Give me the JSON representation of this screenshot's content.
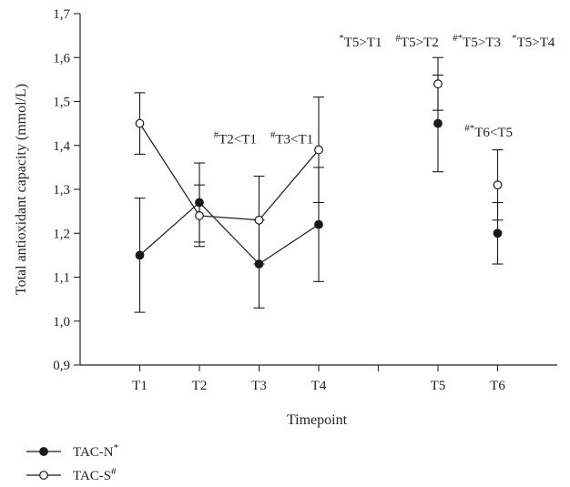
{
  "chart_data": {
    "type": "line",
    "xlabel": "Timepoint",
    "ylabel": "Total antioxidant capacity (mmol/L)",
    "x": [
      "T1",
      "T2",
      "T3",
      "T4",
      "T5",
      "T6"
    ],
    "x_positions": [
      1,
      2,
      3,
      4,
      6,
      7
    ],
    "xlim": [
      0,
      8
    ],
    "ylim": [
      0.9,
      1.7
    ],
    "y_ticks": [
      0.9,
      1.0,
      1.1,
      1.2,
      1.3,
      1.4,
      1.5,
      1.6,
      1.7
    ],
    "y_tick_labels": [
      "0,9",
      "1,0",
      "1,1",
      "1,2",
      "1,3",
      "1,4",
      "1,5",
      "1,6",
      "1,7"
    ],
    "grid": false,
    "legend_position": "bottom-left",
    "series": [
      {
        "name": "TAC-N",
        "superscript": "*",
        "marker": "filled-circle",
        "color": "#1a1a1a",
        "values": [
          1.15,
          1.27,
          1.13,
          1.22,
          1.45,
          1.2
        ],
        "error_low": [
          1.02,
          1.17,
          1.03,
          1.09,
          1.34,
          1.13
        ],
        "error_high": [
          1.28,
          1.36,
          1.23,
          1.35,
          1.56,
          1.27
        ],
        "connected_to_index": 3
      },
      {
        "name": "TAC-S",
        "superscript": "#",
        "marker": "open-circle",
        "color": "#1a1a1a",
        "values": [
          1.45,
          1.24,
          1.23,
          1.39,
          1.54,
          1.31
        ],
        "error_low": [
          1.38,
          1.18,
          1.13,
          1.27,
          1.48,
          1.23
        ],
        "error_high": [
          1.52,
          1.31,
          1.33,
          1.51,
          1.6,
          1.39
        ],
        "connected_to_index": 3
      }
    ],
    "annotations": [
      {
        "id": "t2",
        "marks": "#",
        "text": "T2<T1",
        "x": 2.6,
        "y": 1.405
      },
      {
        "id": "t3",
        "marks": "#",
        "text": "T3<T1",
        "x": 3.55,
        "y": 1.405
      },
      {
        "id": "t5a",
        "marks": "*",
        "text": "T5>T1",
        "x": 4.7,
        "y": 1.625
      },
      {
        "id": "t5b",
        "marks": "#",
        "text": "T5>T2",
        "x": 5.65,
        "y": 1.625
      },
      {
        "id": "t5c",
        "marks": "#*",
        "text": "T5>T3",
        "x": 6.65,
        "y": 1.625
      },
      {
        "id": "t5d",
        "marks": "*",
        "text": "T5>T4",
        "x": 7.6,
        "y": 1.625
      },
      {
        "id": "t6",
        "marks": "#*",
        "text": "T6<T5",
        "x": 6.85,
        "y": 1.42
      }
    ]
  }
}
